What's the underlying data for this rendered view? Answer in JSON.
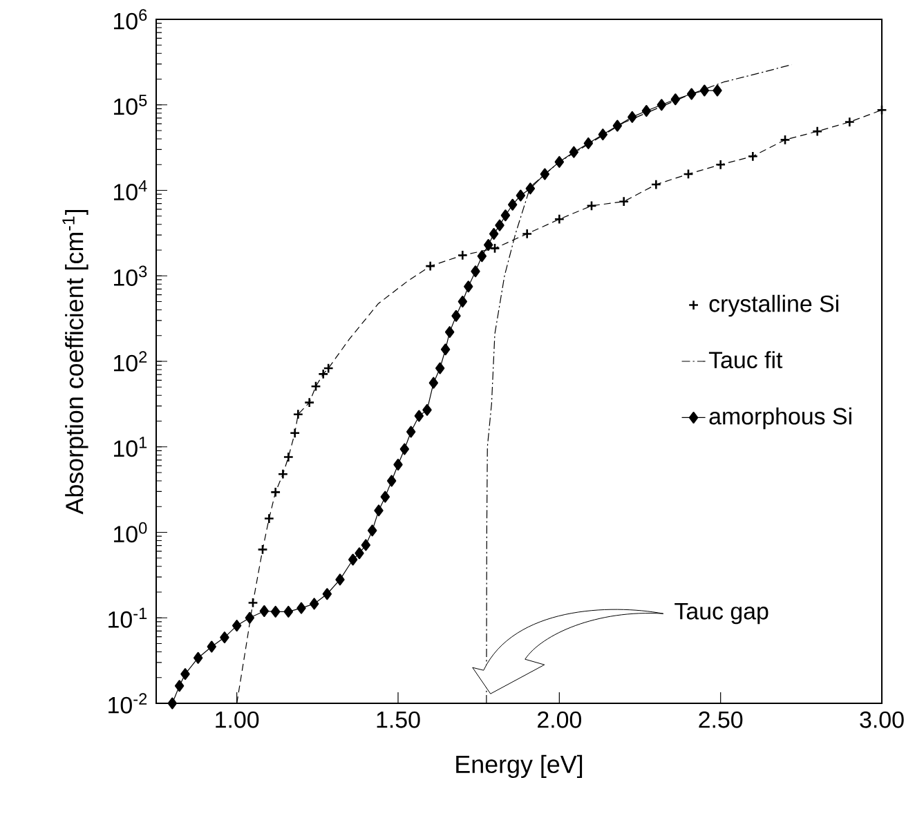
{
  "chart_data": {
    "type": "line",
    "xlabel": "Energy [eV]",
    "ylabel": "Absorption coefficient [cm$^{-1}$]",
    "xlim": [
      0.75,
      3.0
    ],
    "xticks": [
      {
        "value": 1.0,
        "label": "1.00"
      },
      {
        "value": 1.5,
        "label": "1.50"
      },
      {
        "value": 2.0,
        "label": "2.00"
      },
      {
        "value": 2.5,
        "label": "2.50"
      },
      {
        "value": 3.0,
        "label": "3.00"
      }
    ],
    "ylim": [
      0.01,
      1000000
    ],
    "log": "y",
    "yticks": [
      {
        "value": 0.01,
        "label": "10$^{-2}$"
      },
      {
        "value": 0.1,
        "label": "10$^{-1}$"
      },
      {
        "value": 1,
        "label": "10$^{0}$"
      },
      {
        "value": 10,
        "label": "10$^{1}$"
      },
      {
        "value": 100,
        "label": "10$^{2}$"
      },
      {
        "value": 1000,
        "label": "10$^{3}$"
      },
      {
        "value": 10000,
        "label": "10$^{4}$"
      },
      {
        "value": 100000,
        "label": "10$^{5}$"
      },
      {
        "value": 1000000,
        "label": "10$^{6}$"
      }
    ],
    "grid": false,
    "legend": "right",
    "annotations": [
      "Tauc gap"
    ],
    "series": [
      {
        "name": "crystalline Si",
        "type": "scatter",
        "color": "#000000",
        "marker": "cross",
        "x": [
          1.05,
          1.08,
          1.1,
          1.12,
          1.143,
          1.16,
          1.18,
          1.19,
          1.225,
          1.245,
          1.268,
          1.284,
          1.6,
          1.7,
          1.8,
          1.9,
          2.0,
          2.1,
          2.2,
          2.3,
          2.4,
          2.5,
          2.6,
          2.7,
          2.8,
          2.9,
          3.0
        ],
        "values": [
          0.15,
          0.63,
          1.45,
          2.95,
          4.8,
          7.6,
          14.5,
          24,
          33,
          51,
          71,
          83,
          1300,
          1740,
          2100,
          3100,
          4600,
          6600,
          7400,
          11700,
          15500,
          20000,
          25000,
          39000,
          49000,
          63000,
          87000
        ]
      },
      {
        "color": "#000000",
        "marker": "none",
        "line_style": "dashed",
        "x": [
          1.0,
          1.03,
          1.05,
          1.08,
          1.1,
          1.12,
          1.143,
          1.16,
          1.18,
          1.19,
          1.225,
          1.245,
          1.268,
          1.284,
          1.348,
          1.438,
          1.53,
          1.6,
          1.7,
          1.8,
          1.9,
          2.0,
          2.1,
          2.2,
          2.3,
          2.4,
          2.5,
          2.6,
          2.7,
          2.8,
          2.9,
          3.0
        ],
        "values": [
          0.01,
          0.05,
          0.15,
          0.63,
          1.45,
          2.95,
          4.8,
          7.6,
          14.5,
          24,
          33,
          51,
          71,
          83,
          180,
          470,
          870,
          1300,
          1740,
          2100,
          3100,
          4600,
          6600,
          7400,
          11700,
          15500,
          20000,
          25000,
          39000,
          49000,
          63000,
          87000
        ]
      },
      {
        "name": "Tauc fit",
        "type": "line",
        "color": "#000000",
        "marker": "none",
        "line_style": "dashdot",
        "x": [
          1.774,
          1.775,
          1.777,
          1.79,
          1.8,
          1.83,
          1.864,
          1.91,
          2.0,
          2.2,
          2.4,
          2.51,
          2.62,
          2.72
        ],
        "values": [
          0.01,
          1,
          10,
          32,
          210,
          1000,
          3100,
          11000,
          21500,
          62000,
          130000,
          185000,
          235000,
          295000
        ]
      },
      {
        "name": "amorphous Si",
        "type": "line",
        "color": "#000000",
        "marker": "diamond",
        "line_style": "solid",
        "x": [
          0.8,
          0.822,
          0.84,
          0.88,
          0.922,
          0.962,
          1.0,
          1.04,
          1.085,
          1.12,
          1.16,
          1.2,
          1.24,
          1.28,
          1.32,
          1.36,
          1.38,
          1.4,
          1.42,
          1.44,
          1.46,
          1.48,
          1.5,
          1.52,
          1.54,
          1.565,
          1.59,
          1.61,
          1.63,
          1.647,
          1.66,
          1.68,
          1.7,
          1.718,
          1.74,
          1.76,
          1.78,
          1.797,
          1.815,
          1.833,
          1.855,
          1.88,
          1.91,
          1.955,
          2.0,
          2.045,
          2.09,
          2.135,
          2.18,
          2.226,
          2.27,
          2.317,
          2.36,
          2.41,
          2.45,
          2.49
        ],
        "values": [
          0.01,
          0.016,
          0.022,
          0.034,
          0.046,
          0.059,
          0.081,
          0.1,
          0.12,
          0.118,
          0.118,
          0.13,
          0.146,
          0.19,
          0.28,
          0.48,
          0.57,
          0.71,
          1.05,
          1.8,
          2.6,
          4.0,
          6.2,
          9.4,
          15,
          23,
          27,
          56,
          83,
          138,
          220,
          340,
          500,
          750,
          1130,
          1700,
          2300,
          3100,
          3900,
          5100,
          6800,
          8700,
          10500,
          15500,
          21500,
          28000,
          35500,
          45000,
          57000,
          72000,
          85000,
          100000,
          116000,
          134000,
          147000,
          147000
        ]
      }
    ]
  }
}
